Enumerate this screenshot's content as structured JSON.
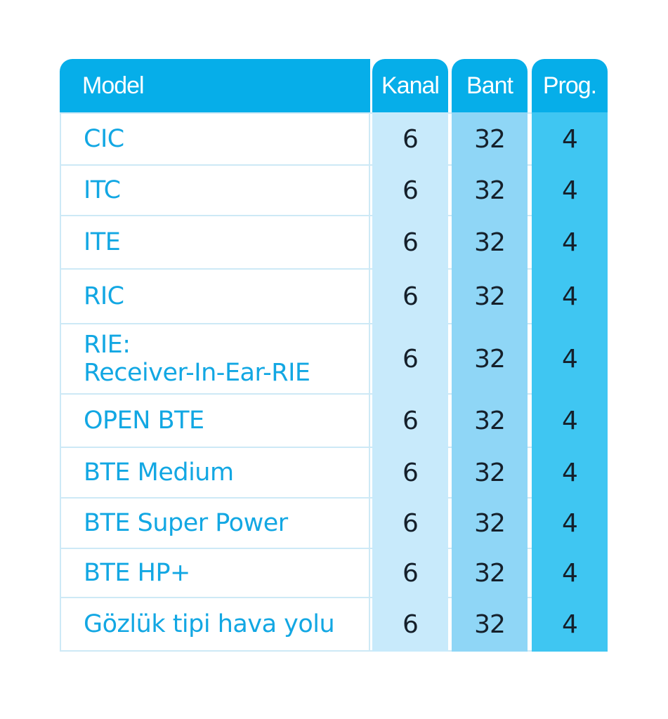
{
  "header": {
    "model": "Model",
    "kanal": "Kanal",
    "bant": "Bant",
    "prog": "Prog."
  },
  "rows": [
    {
      "model": "CIC",
      "kanal": "6",
      "bant": "32",
      "prog": "4"
    },
    {
      "model": "ITC",
      "kanal": "6",
      "bant": "32",
      "prog": "4"
    },
    {
      "model": "ITE",
      "kanal": "6",
      "bant": "32",
      "prog": "4"
    },
    {
      "model": "RIC",
      "kanal": "6",
      "bant": "32",
      "prog": "4"
    },
    {
      "model": "RIE:\nReceiver-In-Ear-RIE",
      "kanal": "6",
      "bant": "32",
      "prog": "4"
    },
    {
      "model": "OPEN BTE",
      "kanal": "6",
      "bant": "32",
      "prog": "4"
    },
    {
      "model": "BTE Medium",
      "kanal": "6",
      "bant": "32",
      "prog": "4"
    },
    {
      "model": "BTE Super Power",
      "kanal": "6",
      "bant": "32",
      "prog": "4"
    },
    {
      "model": "BTE HP+",
      "kanal": "6",
      "bant": "32",
      "prog": "4"
    },
    {
      "model": "Gözlük tipi hava yolu",
      "kanal": "6",
      "bant": "32",
      "prog": "4"
    }
  ],
  "colors": {
    "header_bg": "#06aee9",
    "model_text": "#12a7e3",
    "kanal_bg": "#c8eafb",
    "bant_bg": "#8fd6f6",
    "prog_bg": "#3fc6f2"
  }
}
